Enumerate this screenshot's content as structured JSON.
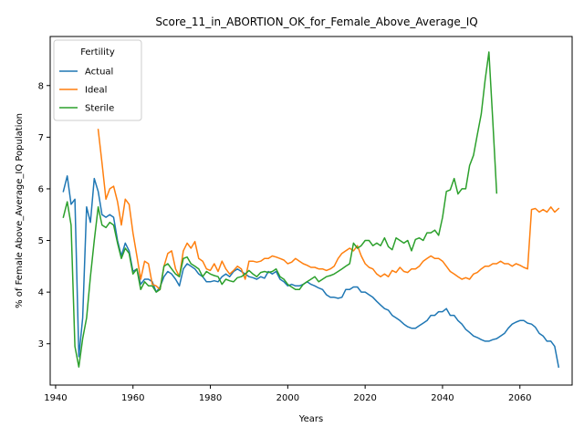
{
  "chart_data": {
    "type": "line",
    "title": "Score_11_in_ABORTION_OK_for_Female_Above_Average_IQ",
    "xlabel": "Years",
    "ylabel": "% of Female Above_Average_IQ Population",
    "xlim": [
      1938.6,
      2073.5
    ],
    "ylim": [
      2.2,
      8.95
    ],
    "xticks": [
      1940,
      1960,
      1980,
      2000,
      2020,
      2040,
      2060
    ],
    "yticks": [
      3,
      4,
      5,
      6,
      7,
      8
    ],
    "grid": false,
    "legend": {
      "title": "Fertility",
      "position": "top-left"
    },
    "series": [
      {
        "name": "Actual",
        "color": "#1f77b4",
        "x": [
          1942,
          1943,
          1944,
          1945,
          1946,
          1947,
          1948,
          1949,
          1950,
          1951,
          1952,
          1953,
          1954,
          1955,
          1956,
          1957,
          1958,
          1959,
          1960,
          1961,
          1962,
          1963,
          1964,
          1965,
          1966,
          1967,
          1968,
          1969,
          1970,
          1971,
          1972,
          1973,
          1974,
          1975,
          1976,
          1977,
          1978,
          1979,
          1980,
          1981,
          1982,
          1983,
          1984,
          1985,
          1986,
          1987,
          1988,
          1989,
          1990,
          1991,
          1992,
          1993,
          1994,
          1995,
          1996,
          1997,
          1998,
          1999,
          2000,
          2001,
          2002,
          2003,
          2004,
          2005,
          2006,
          2007,
          2008,
          2009,
          2010,
          2011,
          2012,
          2013,
          2014,
          2015,
          2016,
          2017,
          2018,
          2019,
          2020,
          2021,
          2022,
          2023,
          2024,
          2025,
          2026,
          2027,
          2028,
          2029,
          2030,
          2031,
          2032,
          2033,
          2034,
          2035,
          2036,
          2037,
          2038,
          2039,
          2040,
          2041,
          2042,
          2043,
          2044,
          2045,
          2046,
          2047,
          2048,
          2049,
          2050,
          2051,
          2052,
          2053,
          2054,
          2055,
          2056,
          2057,
          2058,
          2059,
          2060,
          2061,
          2062,
          2063,
          2064,
          2065,
          2066,
          2067,
          2068,
          2069,
          2070
        ],
        "values": [
          5.95,
          6.25,
          5.7,
          5.8,
          2.75,
          3.5,
          5.65,
          5.35,
          6.2,
          5.95,
          5.5,
          5.45,
          5.5,
          5.45,
          5.0,
          4.7,
          4.95,
          4.8,
          4.4,
          4.45,
          4.15,
          4.25,
          4.25,
          4.2,
          4.0,
          4.1,
          4.3,
          4.4,
          4.35,
          4.25,
          4.12,
          4.45,
          4.55,
          4.5,
          4.45,
          4.35,
          4.3,
          4.2,
          4.2,
          4.22,
          4.2,
          4.3,
          4.35,
          4.3,
          4.4,
          4.45,
          4.4,
          4.35,
          4.3,
          4.28,
          4.25,
          4.3,
          4.27,
          4.4,
          4.35,
          4.4,
          4.25,
          4.2,
          4.12,
          4.15,
          4.12,
          4.12,
          4.15,
          4.2,
          4.15,
          4.12,
          4.08,
          4.05,
          3.95,
          3.9,
          3.9,
          3.88,
          3.9,
          4.05,
          4.05,
          4.1,
          4.1,
          4.0,
          4.0,
          3.95,
          3.9,
          3.82,
          3.75,
          3.68,
          3.65,
          3.55,
          3.5,
          3.45,
          3.38,
          3.33,
          3.3,
          3.3,
          3.35,
          3.4,
          3.45,
          3.55,
          3.55,
          3.62,
          3.62,
          3.68,
          3.55,
          3.55,
          3.45,
          3.38,
          3.28,
          3.22,
          3.15,
          3.12,
          3.08,
          3.05,
          3.05,
          3.08,
          3.1,
          3.15,
          3.2,
          3.3,
          3.38,
          3.42,
          3.45,
          3.45,
          3.4,
          3.38,
          3.32,
          3.2,
          3.15,
          3.05,
          3.05,
          2.95,
          2.55
        ]
      },
      {
        "name": "Ideal",
        "color": "#ff7f0e",
        "x": [
          1951,
          1952,
          1953,
          1954,
          1955,
          1956,
          1957,
          1958,
          1959,
          1960,
          1961,
          1962,
          1963,
          1964,
          1965,
          1966,
          1967,
          1968,
          1969,
          1970,
          1971,
          1972,
          1973,
          1974,
          1975,
          1976,
          1977,
          1978,
          1979,
          1980,
          1981,
          1982,
          1983,
          1984,
          1985,
          1986,
          1987,
          1988,
          1989,
          1990,
          1991,
          1992,
          1993,
          1994,
          1995,
          1996,
          1997,
          1998,
          1999,
          2000,
          2001,
          2002,
          2003,
          2004,
          2005,
          2006,
          2007,
          2008,
          2009,
          2010,
          2011,
          2012,
          2013,
          2014,
          2015,
          2016,
          2017,
          2018,
          2019,
          2020,
          2021,
          2022,
          2023,
          2024,
          2025,
          2026,
          2027,
          2028,
          2029,
          2030,
          2031,
          2032,
          2033,
          2034,
          2035,
          2036,
          2037,
          2038,
          2039,
          2040,
          2041,
          2042,
          2043,
          2044,
          2045,
          2046,
          2047,
          2048,
          2049,
          2050,
          2051,
          2052,
          2053,
          2054,
          2055,
          2056,
          2057,
          2058,
          2059,
          2060,
          2061,
          2062,
          2063,
          2064,
          2065,
          2066,
          2067,
          2068,
          2069,
          2070
        ],
        "values": [
          7.15,
          6.5,
          5.8,
          6.0,
          6.05,
          5.75,
          5.3,
          5.8,
          5.7,
          5.15,
          4.7,
          4.25,
          4.6,
          4.55,
          4.15,
          4.12,
          4.05,
          4.5,
          4.75,
          4.8,
          4.45,
          4.3,
          4.8,
          4.95,
          4.85,
          4.98,
          4.65,
          4.6,
          4.45,
          4.42,
          4.55,
          4.4,
          4.6,
          4.45,
          4.35,
          4.42,
          4.5,
          4.45,
          4.25,
          4.6,
          4.6,
          4.58,
          4.6,
          4.65,
          4.65,
          4.7,
          4.68,
          4.65,
          4.62,
          4.55,
          4.58,
          4.65,
          4.6,
          4.55,
          4.52,
          4.48,
          4.48,
          4.45,
          4.45,
          4.42,
          4.45,
          4.5,
          4.65,
          4.75,
          4.8,
          4.85,
          4.8,
          4.9,
          4.7,
          4.55,
          4.48,
          4.45,
          4.35,
          4.3,
          4.35,
          4.3,
          4.42,
          4.38,
          4.48,
          4.4,
          4.38,
          4.45,
          4.45,
          4.5,
          4.6,
          4.65,
          4.7,
          4.65,
          4.65,
          4.6,
          4.5,
          4.4,
          4.35,
          4.3,
          4.25,
          4.28,
          4.25,
          4.35,
          4.38,
          4.45,
          4.5,
          4.5,
          4.55,
          4.55,
          4.6,
          4.55,
          4.55,
          4.5,
          4.55,
          4.52,
          4.48,
          4.45,
          5.6,
          5.62,
          5.55,
          5.6,
          5.55,
          5.65,
          5.55,
          5.62
        ]
      },
      {
        "name": "Sterile",
        "color": "#2ca02c",
        "x": [
          1942,
          1943,
          1944,
          1945,
          1946,
          1947,
          1948,
          1949,
          1950,
          1951,
          1952,
          1953,
          1954,
          1955,
          1956,
          1957,
          1958,
          1959,
          1960,
          1961,
          1962,
          1963,
          1964,
          1965,
          1966,
          1967,
          1968,
          1969,
          1970,
          1971,
          1972,
          1973,
          1974,
          1975,
          1976,
          1977,
          1978,
          1979,
          1980,
          1981,
          1982,
          1983,
          1984,
          1985,
          1986,
          1987,
          1988,
          1989,
          1990,
          1991,
          1992,
          1993,
          1994,
          1995,
          1996,
          1997,
          1998,
          1999,
          2000,
          2001,
          2002,
          2003,
          2004,
          2005,
          2006,
          2007,
          2008,
          2009,
          2010,
          2011,
          2012,
          2013,
          2014,
          2015,
          2016,
          2017,
          2018,
          2019,
          2020,
          2021,
          2022,
          2023,
          2024,
          2025,
          2026,
          2027,
          2028,
          2029,
          2030,
          2031,
          2032,
          2033,
          2034,
          2035,
          2036,
          2037,
          2038,
          2039,
          2040,
          2041,
          2042,
          2043,
          2044,
          2045,
          2046,
          2047,
          2048,
          2049,
          2050,
          2051,
          2052,
          2053,
          2054
        ],
        "values": [
          5.45,
          5.75,
          5.3,
          2.95,
          2.55,
          3.1,
          3.5,
          4.3,
          5.0,
          5.65,
          5.3,
          5.25,
          5.35,
          5.3,
          4.95,
          4.65,
          4.85,
          4.75,
          4.35,
          4.45,
          4.05,
          4.2,
          4.12,
          4.12,
          4.0,
          4.05,
          4.5,
          4.55,
          4.45,
          4.35,
          4.3,
          4.65,
          4.68,
          4.55,
          4.5,
          4.45,
          4.3,
          4.4,
          4.35,
          4.32,
          4.3,
          4.15,
          4.25,
          4.22,
          4.2,
          4.28,
          4.3,
          4.35,
          4.42,
          4.35,
          4.3,
          4.38,
          4.4,
          4.38,
          4.4,
          4.45,
          4.3,
          4.25,
          4.15,
          4.1,
          4.05,
          4.05,
          4.15,
          4.2,
          4.25,
          4.3,
          4.2,
          4.25,
          4.3,
          4.32,
          4.35,
          4.4,
          4.45,
          4.5,
          4.55,
          4.95,
          4.85,
          4.9,
          5.0,
          5.0,
          4.9,
          4.95,
          4.9,
          5.05,
          4.88,
          4.82,
          5.05,
          5.0,
          4.95,
          5.0,
          4.8,
          5.02,
          5.05,
          5.0,
          5.15,
          5.15,
          5.2,
          5.1,
          5.45,
          5.95,
          5.98,
          6.2,
          5.9,
          6.0,
          6.0,
          6.45,
          6.65,
          7.05,
          7.45,
          8.1,
          8.65,
          7.3,
          5.92
        ]
      }
    ]
  }
}
